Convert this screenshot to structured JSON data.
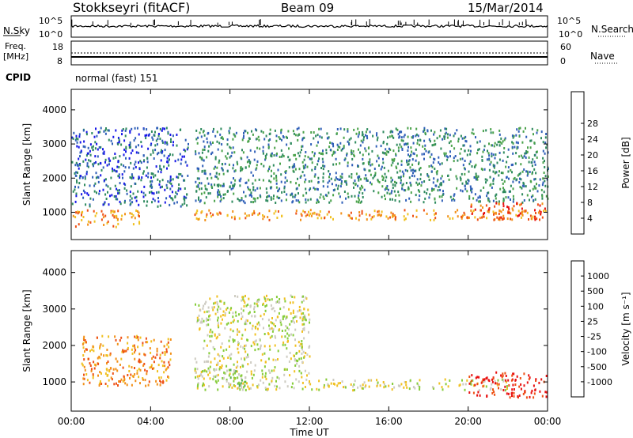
{
  "header": {
    "station": "Stokkseyri (fitACF)",
    "beam": "Beam 09",
    "date": "15/Mar/2014"
  },
  "noise_panel": {
    "left_label": "N.Sky",
    "right_label": "N.Search",
    "left_ticks": [
      "10^5",
      "10^0"
    ],
    "right_ticks": [
      "10^5",
      "10^0"
    ]
  },
  "freq_panel": {
    "left_label_line1": "Freq.",
    "left_label_line2": "[MHz]",
    "left_ticks": [
      "18",
      "8"
    ],
    "right_ticks": [
      "60",
      "0"
    ],
    "right_label": "Nave"
  },
  "cpid": {
    "label": "CPID",
    "mode": "normal (fast) 151"
  },
  "chart_data": [
    {
      "type": "heatmap",
      "name": "power",
      "ylabel": "Slant Range [km]",
      "yticks": [
        "1000",
        "2000",
        "3000",
        "4000"
      ],
      "ylim": [
        200,
        4600
      ],
      "xlim": [
        0,
        24
      ],
      "colorbar": {
        "label": "Power [dB]",
        "ticks": [
          "4",
          "8",
          "12",
          "16",
          "20",
          "24",
          "28"
        ],
        "colors": [
          "#1818e8",
          "#2f5fb8",
          "#2e8a5e",
          "#4aa24a",
          "#a8cc30",
          "#f0c020",
          "#f29018",
          "#ee5014",
          "#e81010"
        ]
      },
      "bands": [
        {
          "t0": 0.0,
          "t1": 5.9,
          "r0": 1200,
          "r1": 3500,
          "level": 1
        },
        {
          "t0": 6.2,
          "t1": 24.0,
          "r0": 1300,
          "r1": 3500,
          "level": 2
        },
        {
          "t0": 6.2,
          "t1": 24.0,
          "r0": 800,
          "r1": 1100,
          "level": 6
        },
        {
          "t0": 0.0,
          "t1": 3.4,
          "r0": 600,
          "r1": 1100,
          "level": 6
        },
        {
          "t0": 20.0,
          "t1": 24.0,
          "r0": 800,
          "r1": 1300,
          "level": 7
        }
      ]
    },
    {
      "type": "heatmap",
      "name": "velocity",
      "ylabel": "Slant Range [km]",
      "yticks": [
        "1000",
        "2000",
        "3000",
        "4000"
      ],
      "ylim": [
        200,
        4600
      ],
      "xlim": [
        0,
        24
      ],
      "xticks": [
        "00:00",
        "04:00",
        "08:00",
        "12:00",
        "16:00",
        "20:00",
        "00:00"
      ],
      "xlabel": "Time UT",
      "colorbar": {
        "label": "Velocity [m s⁻¹]",
        "ticks": [
          "1000",
          "500",
          "100",
          "25",
          "-25",
          "-100",
          "-500",
          "-1000"
        ],
        "colors": [
          "#1a3ab8",
          "#2f7d6e",
          "#5bb04a",
          "#86cc3a",
          "#cdcbc1",
          "#f0c020",
          "#f29018",
          "#ee5014",
          "#e81010"
        ]
      },
      "bands": [
        {
          "t0": 6.3,
          "t1": 22.0,
          "r0": 800,
          "r1": 1100,
          "level": 4
        },
        {
          "t0": 6.2,
          "t1": 12.0,
          "r0": 1100,
          "r1": 3400,
          "level": 4
        },
        {
          "t0": 20.0,
          "t1": 24.0,
          "r0": 600,
          "r1": 1300,
          "level": 8
        },
        {
          "t0": 0.5,
          "t1": 5.0,
          "r0": 900,
          "r1": 2300,
          "level": 6
        },
        {
          "t0": 7.8,
          "t1": 8.8,
          "r0": 900,
          "r1": 1500,
          "level": 3
        }
      ]
    }
  ]
}
